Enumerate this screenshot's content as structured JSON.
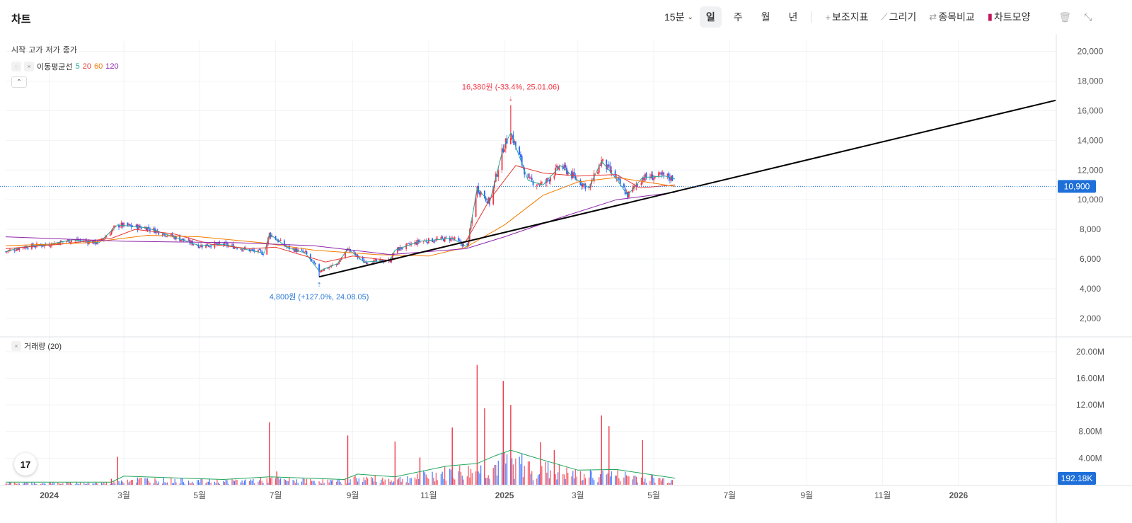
{
  "header": {
    "title": "차트",
    "interval": "15분",
    "periods": [
      "일",
      "주",
      "월",
      "년"
    ],
    "active_period": "일",
    "tools": [
      {
        "icon": "plus-icon",
        "glyph": "+",
        "label": "보조지표"
      },
      {
        "icon": "pencil-icon",
        "glyph": "⟋",
        "label": "그리기"
      },
      {
        "icon": "compare-icon",
        "glyph": "⇄",
        "label": "종목비교"
      },
      {
        "icon": "candle-icon",
        "glyph": "▮",
        "label": "차트모양"
      }
    ]
  },
  "legend": {
    "ohlc": [
      "시작",
      "고가",
      "저가",
      "종가"
    ],
    "ma_label": "이동평균선",
    "ma_periods": [
      {
        "period": "5",
        "color": "#26a69a"
      },
      {
        "period": "20",
        "color": "#e53935"
      },
      {
        "period": "60",
        "color": "#f57c00"
      },
      {
        "period": "120",
        "color": "#8e24aa"
      }
    ]
  },
  "volume_legend": "거래량 (20)",
  "logo_text": "17",
  "colors": {
    "up": "#f23645",
    "down": "#2962ff",
    "ma5": "#26a69a",
    "ma20": "#e53935",
    "ma60": "#f57c00",
    "ma120": "#8e24aa",
    "trend": "#000000",
    "last_price": "#1e6fd9"
  },
  "chart_data": {
    "type": "candlestick",
    "x_ticks": [
      "2024",
      "3월",
      "5월",
      "7월",
      "9월",
      "11월",
      "2025",
      "3월",
      "5월",
      "7월",
      "9월",
      "11월",
      "2026"
    ],
    "price_axis": [
      2000,
      4000,
      6000,
      8000,
      10000,
      12000,
      14000,
      16000,
      18000,
      20000
    ],
    "price_labels": [
      "2,000",
      "4,000",
      "6,000",
      "8,000",
      "10,000",
      "12,000",
      "14,000",
      "16,000",
      "18,000",
      "20,000"
    ],
    "price_range": [
      800,
      20700
    ],
    "volume_axis": [
      4,
      8,
      12,
      16,
      20
    ],
    "volume_labels": [
      "4.00M",
      "8.00M",
      "12.00M",
      "16.00M",
      "20.00M"
    ],
    "volume_range": [
      0,
      22
    ],
    "last_price": 10900,
    "last_price_label": "10,900",
    "last_volume_label": "192.18K",
    "high_annotation": {
      "text": "16,380원 (-33.4%, 25.01.06)",
      "date": "2025-01-06",
      "price": 16380
    },
    "low_annotation": {
      "text": "4,800원 (+127.0%, 24.08.05)",
      "date": "2024-08-05",
      "price": 4800
    },
    "trendline": {
      "start": {
        "date": "2024-08-05",
        "price": 4800
      },
      "end": {
        "date": "2026-03-20",
        "price": 16700
      }
    },
    "price_path": [
      [
        "2023-11-27",
        6500
      ],
      [
        "2023-12-10",
        6800
      ],
      [
        "2024-01-01",
        7000
      ],
      [
        "2024-01-20",
        7300
      ],
      [
        "2024-02-10",
        7100
      ],
      [
        "2024-02-25",
        8300
      ],
      [
        "2024-03-20",
        8100
      ],
      [
        "2024-04-10",
        7500
      ],
      [
        "2024-05-01",
        6900
      ],
      [
        "2024-05-20",
        7000
      ],
      [
        "2024-06-10",
        6600
      ],
      [
        "2024-06-22",
        6400
      ],
      [
        "2024-06-26",
        7700
      ],
      [
        "2024-07-10",
        6800
      ],
      [
        "2024-07-25",
        6400
      ],
      [
        "2024-08-05",
        5200
      ],
      [
        "2024-08-20",
        5700
      ],
      [
        "2024-08-28",
        6700
      ],
      [
        "2024-09-10",
        5800
      ],
      [
        "2024-10-01",
        5900
      ],
      [
        "2024-10-05",
        6600
      ],
      [
        "2024-10-25",
        7200
      ],
      [
        "2024-11-20",
        7400
      ],
      [
        "2024-12-02",
        6800
      ],
      [
        "2024-12-10",
        10800
      ],
      [
        "2024-12-20",
        9800
      ],
      [
        "2024-12-31",
        13500
      ],
      [
        "2025-01-06",
        14500
      ],
      [
        "2025-01-20",
        11300
      ],
      [
        "2025-02-01",
        11000
      ],
      [
        "2025-02-15",
        12300
      ],
      [
        "2025-03-01",
        11300
      ],
      [
        "2025-03-10",
        10800
      ],
      [
        "2025-03-20",
        12600
      ],
      [
        "2025-04-01",
        11400
      ],
      [
        "2025-04-10",
        10300
      ],
      [
        "2025-04-22",
        11500
      ],
      [
        "2025-05-10",
        11600
      ],
      [
        "2025-05-18",
        11400
      ]
    ],
    "ma_paths": {
      "ma20": [
        [
          "2023-11-27",
          6700
        ],
        [
          "2024-01-10",
          7000
        ],
        [
          "2024-02-20",
          7400
        ],
        [
          "2024-03-10",
          8000
        ],
        [
          "2024-04-10",
          7700
        ],
        [
          "2024-05-10",
          7000
        ],
        [
          "2024-06-10",
          6700
        ],
        [
          "2024-07-01",
          6800
        ],
        [
          "2024-08-10",
          5800
        ],
        [
          "2024-09-01",
          6200
        ],
        [
          "2024-10-01",
          5900
        ],
        [
          "2024-11-01",
          6600
        ],
        [
          "2024-12-01",
          7200
        ],
        [
          "2024-12-20",
          10000
        ],
        [
          "2025-01-10",
          12300
        ],
        [
          "2025-02-01",
          11800
        ],
        [
          "2025-03-01",
          11600
        ],
        [
          "2025-04-01",
          11700
        ],
        [
          "2025-04-20",
          10800
        ],
        [
          "2025-05-18",
          11000
        ]
      ],
      "ma60": [
        [
          "2023-11-27",
          6900
        ],
        [
          "2024-02-01",
          7100
        ],
        [
          "2024-03-20",
          7600
        ],
        [
          "2024-05-01",
          7500
        ],
        [
          "2024-06-20",
          7100
        ],
        [
          "2024-08-01",
          6600
        ],
        [
          "2024-09-20",
          6300
        ],
        [
          "2024-11-01",
          6200
        ],
        [
          "2024-12-01",
          6800
        ],
        [
          "2025-01-01",
          8300
        ],
        [
          "2025-02-01",
          10300
        ],
        [
          "2025-03-01",
          11200
        ],
        [
          "2025-04-01",
          11500
        ],
        [
          "2025-05-18",
          10900
        ]
      ],
      "ma120": [
        [
          "2023-11-27",
          7500
        ],
        [
          "2024-03-01",
          7200
        ],
        [
          "2024-06-01",
          7100
        ],
        [
          "2024-08-01",
          6900
        ],
        [
          "2024-10-01",
          6300
        ],
        [
          "2024-12-01",
          6700
        ],
        [
          "2025-01-01",
          7500
        ],
        [
          "2025-02-15",
          8800
        ],
        [
          "2025-04-01",
          10000
        ],
        [
          "2025-05-18",
          10500
        ]
      ]
    },
    "volume_ma_path": [
      [
        "2023-11-27",
        0.4
      ],
      [
        "2024-02-20",
        0.4
      ],
      [
        "2024-03-01",
        1.3
      ],
      [
        "2024-05-20",
        0.8
      ],
      [
        "2024-06-26",
        1.2
      ],
      [
        "2024-08-25",
        0.8
      ],
      [
        "2024-09-05",
        1.6
      ],
      [
        "2024-10-05",
        1.2
      ],
      [
        "2024-11-15",
        2.8
      ],
      [
        "2024-12-10",
        3.2
      ],
      [
        "2024-12-25",
        4.4
      ],
      [
        "2025-01-06",
        5.2
      ],
      [
        "2025-01-25",
        4.1
      ],
      [
        "2025-03-01",
        2.2
      ],
      [
        "2025-04-01",
        2.3
      ],
      [
        "2025-05-18",
        1.0
      ]
    ],
    "volume_spikes": [
      [
        "2023-12-01",
        0.3
      ],
      [
        "2024-02-20",
        0.9
      ],
      [
        "2024-02-25",
        4.2
      ],
      [
        "2024-06-26",
        9.4
      ],
      [
        "2024-07-02",
        2.0
      ],
      [
        "2024-08-28",
        7.4
      ],
      [
        "2024-10-05",
        6.5
      ],
      [
        "2024-10-25",
        4.1
      ],
      [
        "2024-11-20",
        8.6
      ],
      [
        "2024-12-10",
        18.0
      ],
      [
        "2024-12-16",
        11.5
      ],
      [
        "2024-12-31",
        15.6
      ],
      [
        "2025-01-06",
        12.0
      ],
      [
        "2025-01-30",
        6.4
      ],
      [
        "2025-02-10",
        5.2
      ],
      [
        "2025-03-20",
        10.4
      ],
      [
        "2025-03-26",
        8.8
      ],
      [
        "2025-04-22",
        6.7
      ]
    ]
  }
}
